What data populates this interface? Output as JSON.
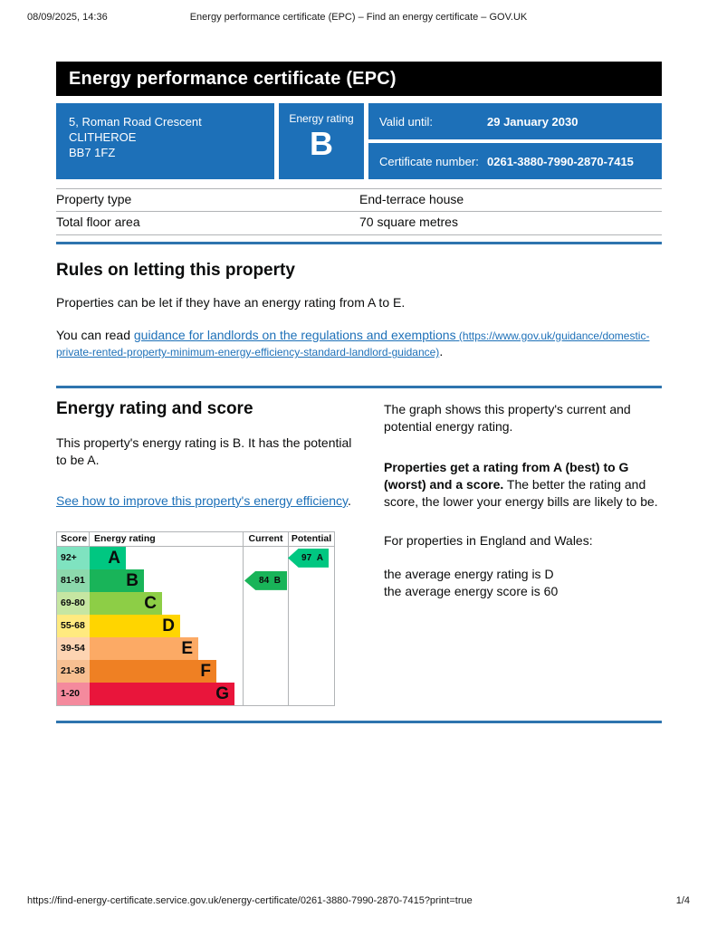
{
  "print_header": {
    "datetime": "08/09/2025, 14:36",
    "title": "Energy performance certificate (EPC) – Find an energy certificate – GOV.UK"
  },
  "print_footer": {
    "url": "https://find-energy-certificate.service.gov.uk/energy-certificate/0261-3880-7990-2870-7415?print=true",
    "page_indicator": "1/4"
  },
  "banner": {
    "title": "Energy performance certificate (EPC)"
  },
  "summary": {
    "address_line1": "5, Roman Road Crescent",
    "address_line2": "CLITHEROE",
    "address_line3": "BB7 1FZ",
    "energy_rating_label": "Energy rating",
    "energy_rating_value": "B",
    "valid_until_label": "Valid until:",
    "valid_until_value": "29 January 2030",
    "certificate_number_label": "Certificate number:",
    "certificate_number_value": "0261-3880-7990-2870-7415"
  },
  "property_details": {
    "rows": [
      {
        "label": "Property type",
        "value": "End-terrace house"
      },
      {
        "label": "Total floor area",
        "value": "70 square metres"
      }
    ]
  },
  "rules_section": {
    "heading": "Rules on letting this property",
    "paragraph1": "Properties can be let if they have an energy rating from A to E.",
    "paragraph2_prefix": "You can read ",
    "link_text": "guidance for landlords on the regulations and exemptions",
    "link_url_text": " (https://www.gov.uk/guidance/domestic-private-rented-property-minimum-energy-efficiency-standard-landlord-guidance)",
    "paragraph2_suffix": "."
  },
  "rating_section": {
    "heading": "Energy rating and score",
    "paragraph1": "This property's energy rating is B. It has the potential to be A.",
    "improve_link_text": "See how to improve this property's energy efficiency",
    "improve_link_suffix": "."
  },
  "graph_notes": {
    "paragraph1": "The graph shows this property's current and potential energy rating.",
    "paragraph2_bold": "Properties get a rating from A (best) to G (worst) and a score.",
    "paragraph2_rest": " The better the rating and score, the lower your energy bills are likely to be.",
    "paragraph3": "For properties in England and Wales:",
    "line_avg_rating": "the average energy rating is D",
    "line_avg_score": "the average energy score is 60"
  },
  "chart_data": {
    "type": "bar",
    "title": "Energy rating and score graph",
    "columns": {
      "score": "Score",
      "rating": "Energy rating",
      "current": "Current",
      "potential": "Potential"
    },
    "bands": [
      {
        "letter": "A",
        "score_range": "92+",
        "color": "#00c781",
        "score_cell_color": "#7fe3c0"
      },
      {
        "letter": "B",
        "score_range": "81-91",
        "color": "#19b459",
        "score_cell_color": "#8cd9ac"
      },
      {
        "letter": "C",
        "score_range": "69-80",
        "color": "#8dce46",
        "score_cell_color": "#c6e6a2"
      },
      {
        "letter": "D",
        "score_range": "55-68",
        "color": "#ffd500",
        "score_cell_color": "#ffea7f"
      },
      {
        "letter": "E",
        "score_range": "39-54",
        "color": "#fcaa65",
        "score_cell_color": "#fdd4b2"
      },
      {
        "letter": "F",
        "score_range": "21-38",
        "color": "#ef8023",
        "score_cell_color": "#f7bf91"
      },
      {
        "letter": "G",
        "score_range": "1-20",
        "color": "#e9153b",
        "score_cell_color": "#f48a9d"
      }
    ],
    "current": {
      "score": 84,
      "letter": "B",
      "color": "#19b459"
    },
    "potential": {
      "score": 97,
      "letter": "A",
      "color": "#00c781"
    }
  },
  "colors": {
    "brand_blue": "#1d70b8",
    "divider_blue": "#2e74ae",
    "border_gray": "#b1b4b6"
  }
}
